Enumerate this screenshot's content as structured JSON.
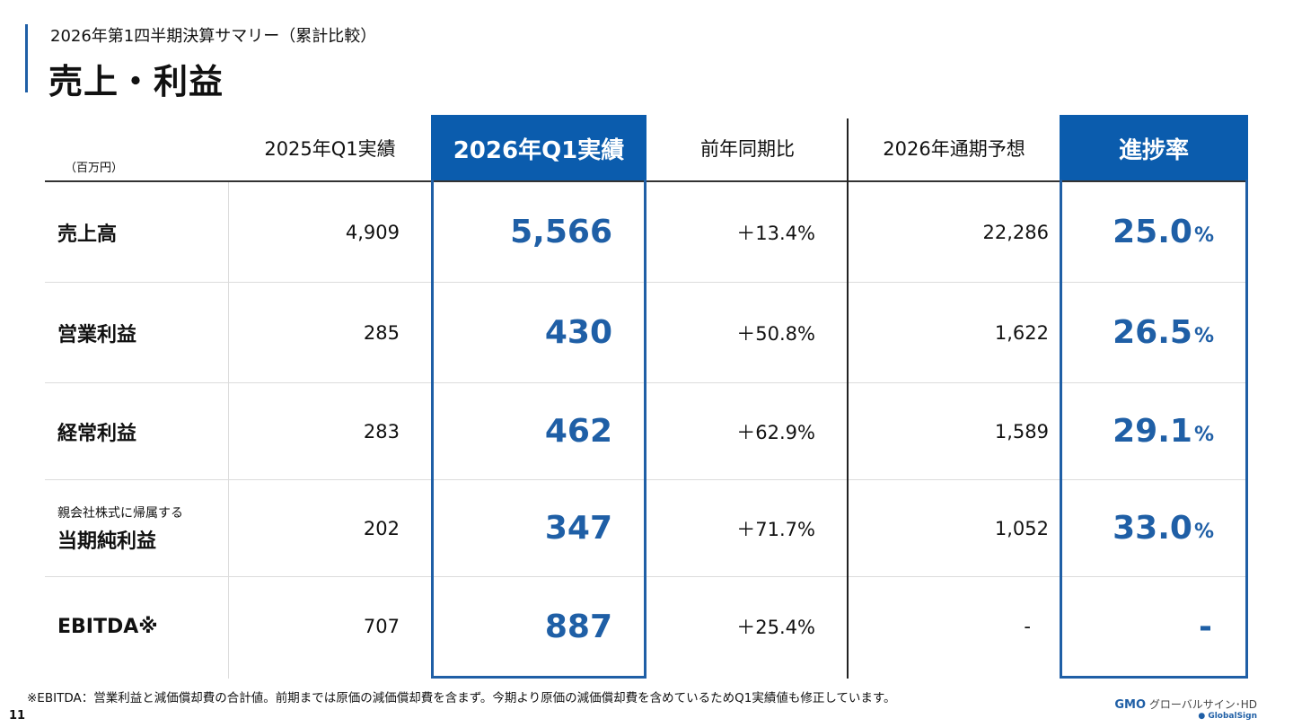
{
  "header": {
    "subtitle": "2026年第1四半期決算サマリー（累計比較）",
    "title": "売上・利益"
  },
  "table": {
    "unit": "（百万円）",
    "columns": [
      "2025年Q1実績",
      "2026年Q1実績",
      "前年同期比",
      "2026年通期予想",
      "進捗率"
    ],
    "rows": [
      {
        "label_small": "",
        "label": "売上高",
        "prev": "4,909",
        "curr": "5,566",
        "yoy": "＋13.4%",
        "forecast": "22,286",
        "progress": "25.0",
        "progress_unit": "%"
      },
      {
        "label_small": "",
        "label": "営業利益",
        "prev": "285",
        "curr": "430",
        "yoy": "＋50.8%",
        "forecast": "1,622",
        "progress": "26.5",
        "progress_unit": "%"
      },
      {
        "label_small": "",
        "label": "経常利益",
        "prev": "283",
        "curr": "462",
        "yoy": "＋62.9%",
        "forecast": "1,589",
        "progress": "29.1",
        "progress_unit": "%"
      },
      {
        "label_small": "親会社株式に帰属する",
        "label": "当期純利益",
        "prev": "202",
        "curr": "347",
        "yoy": "＋71.7%",
        "forecast": "1,052",
        "progress": "33.0",
        "progress_unit": "%"
      },
      {
        "label_small": "",
        "label": "EBITDA※",
        "prev": "707",
        "curr": "887",
        "yoy": "＋25.4%",
        "forecast": "-",
        "progress": "-",
        "progress_unit": ""
      }
    ]
  },
  "footnote": "※EBITDA：営業利益と減価償却費の合計値。前期までは原価の減価償却費を含まず。今期より原価の減価償却費を含めているためQ1実績値も修正しています。",
  "page_number": "11",
  "logo": {
    "brand": "GMO",
    "name": "グローバルサイン･HD",
    "sub": "GlobalSign"
  },
  "colors": {
    "accent": "#1f5fa6",
    "header_fill": "#0b5cad"
  }
}
